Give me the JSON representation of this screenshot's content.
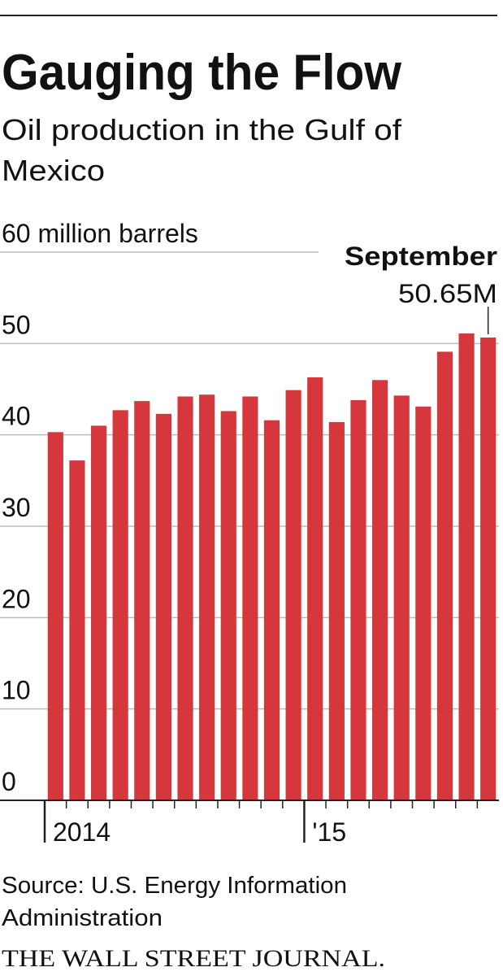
{
  "chart_data": {
    "type": "bar",
    "title": "Gauging the Flow",
    "subtitle": [
      "Oil production in the Gulf of",
      "Mexico"
    ],
    "categories": [
      "2014",
      null,
      null,
      null,
      null,
      null,
      null,
      null,
      null,
      null,
      null,
      null,
      "'15",
      null,
      null,
      null,
      null,
      null,
      null,
      null,
      null
    ],
    "values": [
      40.3,
      37.2,
      41.0,
      42.7,
      43.7,
      42.3,
      44.2,
      44.4,
      42.6,
      44.2,
      41.6,
      44.9,
      46.3,
      41.4,
      43.8,
      46.0,
      44.3,
      43.1,
      49.1,
      51.1,
      50.65
    ],
    "value_labels": [
      null,
      null,
      null,
      null,
      null,
      null,
      null,
      null,
      null,
      null,
      null,
      null,
      null,
      null,
      null,
      null,
      null,
      null,
      null,
      null,
      "50.65M"
    ],
    "annotation": "September",
    "color": "#d6373c",
    "ylim": [
      0,
      60
    ],
    "yticks": [
      0,
      10,
      20,
      30,
      40,
      50,
      {
        "value": 60,
        "label": "60 million barrels"
      }
    ],
    "grid": true,
    "source": [
      "Source: U.S. Energy Information",
      "Administration"
    ],
    "credit": "THE WALL STREET JOURNAL."
  }
}
